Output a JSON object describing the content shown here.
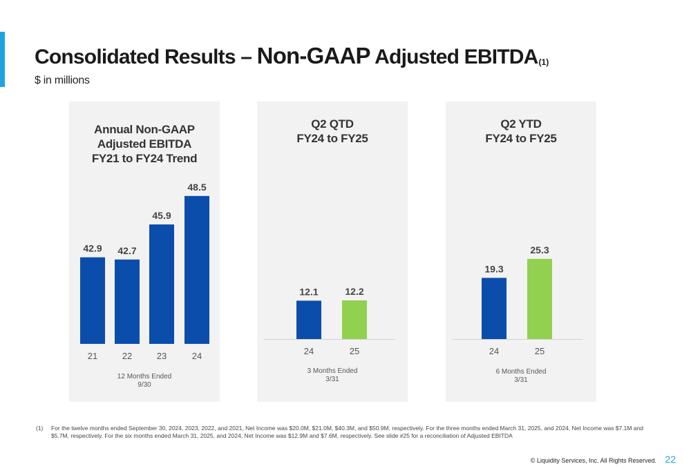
{
  "header": {
    "title_part1": "Consolidated Results – ",
    "title_part2": "Non-GAAP",
    "title_part3": " Adjusted EBITDA",
    "title_sup": "(1)",
    "subtitle": "$ in millions"
  },
  "colors": {
    "accent": "#1fa3e0",
    "fy_prior": "#0b4dab",
    "fy_current": "#92d050",
    "panel_bg": "#f2f2f2"
  },
  "chart_data": [
    {
      "type": "bar",
      "title": "Annual Non-GAAP Adjusted EBITDA FY21 to FY24 Trend",
      "title_lines": [
        "Annual Non-GAAP",
        "Adjusted EBITDA",
        "FY21 to FY24 Trend"
      ],
      "categories": [
        "21",
        "22",
        "23",
        "24"
      ],
      "values": [
        42.9,
        42.7,
        45.9,
        48.5
      ],
      "value_labels": [
        "42.9",
        "42.7",
        "45.9",
        "48.5"
      ],
      "bar_colors": [
        "#0b4dab",
        "#0b4dab",
        "#0b4dab",
        "#0b4dab"
      ],
      "note_lines": [
        "12 Months Ended",
        "9/30"
      ],
      "baseline": 35,
      "max": 50
    },
    {
      "type": "bar",
      "title": "Q2 QTD FY24 to FY25",
      "title_lines": [
        "Q2 QTD",
        "FY24 to FY25"
      ],
      "categories": [
        "24",
        "25"
      ],
      "values": [
        12.1,
        12.2
      ],
      "value_labels": [
        "12.1",
        "12.2"
      ],
      "bar_colors": [
        "#0b4dab",
        "#92d050"
      ],
      "note_lines": [
        "3 Months Ended",
        "3/31"
      ],
      "baseline": 0,
      "max": 50
    },
    {
      "type": "bar",
      "title": "Q2 YTD FY24 to FY25",
      "title_lines": [
        "Q2 YTD",
        "FY24 to FY25"
      ],
      "categories": [
        "24",
        "25"
      ],
      "values": [
        19.3,
        25.3
      ],
      "value_labels": [
        "19.3",
        "25.3"
      ],
      "bar_colors": [
        "#0b4dab",
        "#92d050"
      ],
      "note_lines": [
        "6 Months Ended",
        "3/31"
      ],
      "baseline": 0,
      "max": 50
    }
  ],
  "footnote": {
    "number": "(1)",
    "text": "For the twelve months ended September 30, 2024, 2023, 2022, and 2021, Net Income was $20.0M, $21.0M, $40.3M, and $50.9M, respectively. For the three months ended March 31, 2025, and 2024, Net Income was $7.1M and $5.7M, respectively. For the six months ended March 31, 2025, and 2024, Net Income was $12.9M and $7.6M, respectively. See slide #25 for a reconciliation of Adjusted EBITDA"
  },
  "footer": {
    "copyright": "© Liquidity Services, Inc. All Rights Reserved.",
    "page_number": "22"
  }
}
